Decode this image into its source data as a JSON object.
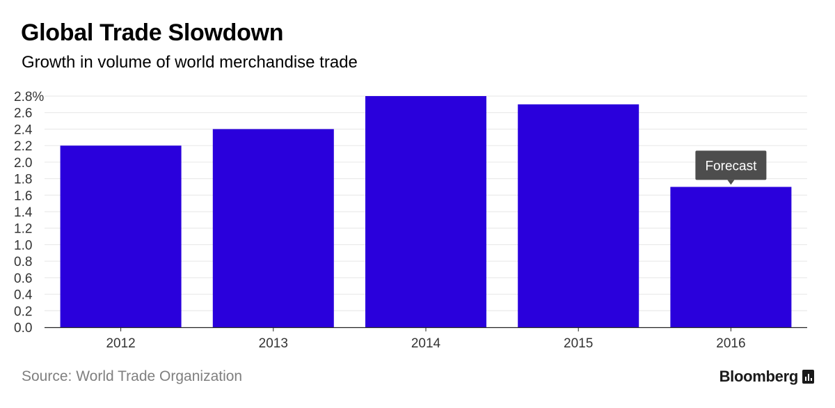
{
  "header": {
    "title": "Global Trade Slowdown",
    "subtitle": "Growth in volume of world merchandise trade"
  },
  "footer": {
    "source": "Source: World Trade Organization",
    "brand": "Bloomberg",
    "brand_icon": "bloomberg-bars-icon"
  },
  "colors": {
    "bar": "#2a00dc",
    "grid": "#e6e6e6",
    "axis": "#222222",
    "tick_text": "#333333",
    "callout_bg": "#4d4d4d",
    "callout_text": "#ffffff"
  },
  "chart_data": {
    "type": "bar",
    "categories": [
      "2012",
      "2013",
      "2014",
      "2015",
      "2016"
    ],
    "values": [
      2.2,
      2.4,
      2.8,
      2.7,
      1.7
    ],
    "ylim": [
      0,
      2.8
    ],
    "yticks": [
      0.0,
      0.2,
      0.4,
      0.6,
      0.8,
      1.0,
      1.2,
      1.4,
      1.6,
      1.8,
      2.0,
      2.2,
      2.4,
      2.6,
      2.8
    ],
    "ytick_labels": [
      "0.0",
      "0.2",
      "0.4",
      "0.6",
      "0.8",
      "1.0",
      "1.2",
      "1.4",
      "1.6",
      "1.8",
      "2.0",
      "2.2",
      "2.4",
      "2.6",
      "2.8%"
    ],
    "grid": true,
    "annotations": [
      {
        "category": "2016",
        "text": "Forecast"
      }
    ]
  }
}
